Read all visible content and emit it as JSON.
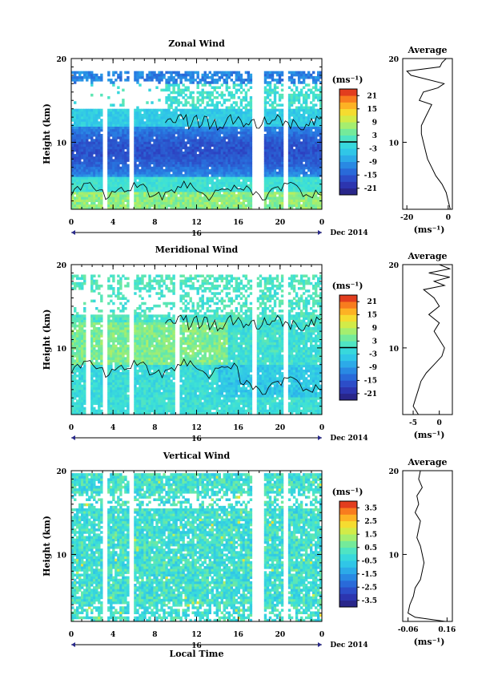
{
  "figure": {
    "xlabel": "Local Time",
    "ylabel": "Height (km)",
    "date_label": "Dec 2014",
    "day_label": "16",
    "cb_unit": "(ms⁻¹)",
    "avg_title": "Average",
    "avg_unit": "(ms⁻¹)"
  },
  "chart_data": [
    {
      "type": "heatmap",
      "title": "Zonal Wind",
      "x_ticks": [
        "0",
        "4",
        "8",
        "12",
        "16",
        "20",
        "0"
      ],
      "y_ticks": [
        "10",
        "20"
      ],
      "xlim": [
        0,
        24
      ],
      "ylim": [
        2,
        20
      ],
      "colorbar": {
        "ticks": [
          "21",
          "15",
          "9",
          "3",
          "-3",
          "-9",
          "-15",
          "-21"
        ],
        "range": [
          -24,
          24
        ],
        "contour_at": 0
      },
      "field": "zonal",
      "gaps": [
        3.2,
        5.8,
        17.6,
        18.1,
        20.5
      ],
      "profile": {
        "title": "Average",
        "x_ticks": [
          "-20",
          "0"
        ],
        "xlim": [
          -22,
          2
        ],
        "y_ticks": [
          "10",
          "20"
        ],
        "points": [
          [
            2,
            1
          ],
          [
            3,
            0
          ],
          [
            4,
            -1
          ],
          [
            5,
            -3
          ],
          [
            6,
            -6
          ],
          [
            7,
            -8
          ],
          [
            8,
            -10
          ],
          [
            9,
            -11
          ],
          [
            10,
            -12
          ],
          [
            11,
            -13
          ],
          [
            12,
            -13
          ],
          [
            13,
            -11
          ],
          [
            14,
            -9
          ],
          [
            14.5,
            -8
          ],
          [
            15,
            -14
          ],
          [
            16,
            -12
          ],
          [
            16.5,
            -5
          ],
          [
            17,
            -2
          ],
          [
            18,
            -18
          ],
          [
            18.5,
            -20
          ],
          [
            19,
            -4
          ],
          [
            19.5,
            -3
          ],
          [
            20,
            -1
          ]
        ]
      }
    },
    {
      "type": "heatmap",
      "title": "Meridional Wind",
      "x_ticks": [
        "0",
        "4",
        "8",
        "12",
        "16",
        "20",
        "0"
      ],
      "y_ticks": [
        "10",
        "20"
      ],
      "xlim": [
        0,
        24
      ],
      "ylim": [
        2,
        20
      ],
      "colorbar": {
        "ticks": [
          "21",
          "15",
          "9",
          "3",
          "-3",
          "-9",
          "-15",
          "-21"
        ],
        "range": [
          -24,
          24
        ],
        "contour_at": 0
      },
      "field": "meridional",
      "gaps": [
        1.6,
        3.2,
        5.8,
        10.2,
        17.6,
        20.5
      ],
      "profile": {
        "title": "Average",
        "x_ticks": [
          "-5",
          "0"
        ],
        "xlim": [
          -7,
          2.5
        ],
        "y_ticks": [
          "10",
          "20"
        ],
        "points": [
          [
            2,
            -4
          ],
          [
            3,
            -5
          ],
          [
            4,
            -4.5
          ],
          [
            5,
            -4
          ],
          [
            6,
            -3.5
          ],
          [
            7,
            -2.5
          ],
          [
            8,
            -1
          ],
          [
            9,
            0.5
          ],
          [
            10,
            1
          ],
          [
            11,
            0
          ],
          [
            12,
            -1
          ],
          [
            13,
            0
          ],
          [
            14,
            -2
          ],
          [
            15,
            0
          ],
          [
            16,
            -1
          ],
          [
            17,
            -3
          ],
          [
            17.5,
            1
          ],
          [
            18,
            -1
          ],
          [
            18.5,
            2
          ],
          [
            19,
            -2
          ],
          [
            19.5,
            2
          ],
          [
            20,
            0
          ]
        ]
      }
    },
    {
      "type": "heatmap",
      "title": "Vertical Wind",
      "x_ticks": [
        "0",
        "4",
        "8",
        "12",
        "16",
        "20",
        "0"
      ],
      "y_ticks": [
        "10",
        "20"
      ],
      "xlim": [
        0,
        24
      ],
      "ylim": [
        2,
        20
      ],
      "colorbar": {
        "ticks": [
          "3.5",
          "2.5",
          "1.5",
          "0.5",
          "-0.5",
          "-1.5",
          "-2.5",
          "-3.5"
        ],
        "range": [
          -4,
          4
        ]
      },
      "field": "vertical",
      "gaps": [
        3.2,
        5.8,
        17.6,
        18.1,
        20.5
      ],
      "profile": {
        "title": "Average",
        "x_ticks": [
          "-0.06",
          "0.16"
        ],
        "xlim": [
          -0.09,
          0.19
        ],
        "y_ticks": [
          "10",
          "20"
        ],
        "points": [
          [
            2,
            0.15
          ],
          [
            2.5,
            -0.02
          ],
          [
            3,
            -0.06
          ],
          [
            4,
            -0.05
          ],
          [
            5,
            -0.03
          ],
          [
            6,
            -0.02
          ],
          [
            7,
            0.01
          ],
          [
            8,
            0.02
          ],
          [
            9,
            0.03
          ],
          [
            10,
            0.02
          ],
          [
            11,
            0.01
          ],
          [
            12,
            -0.01
          ],
          [
            13,
            0.0
          ],
          [
            14,
            0.01
          ],
          [
            15,
            -0.02
          ],
          [
            16,
            0.0
          ],
          [
            17,
            -0.01
          ],
          [
            18,
            0.02
          ],
          [
            19,
            0.0
          ],
          [
            20,
            0.01
          ]
        ]
      }
    }
  ]
}
